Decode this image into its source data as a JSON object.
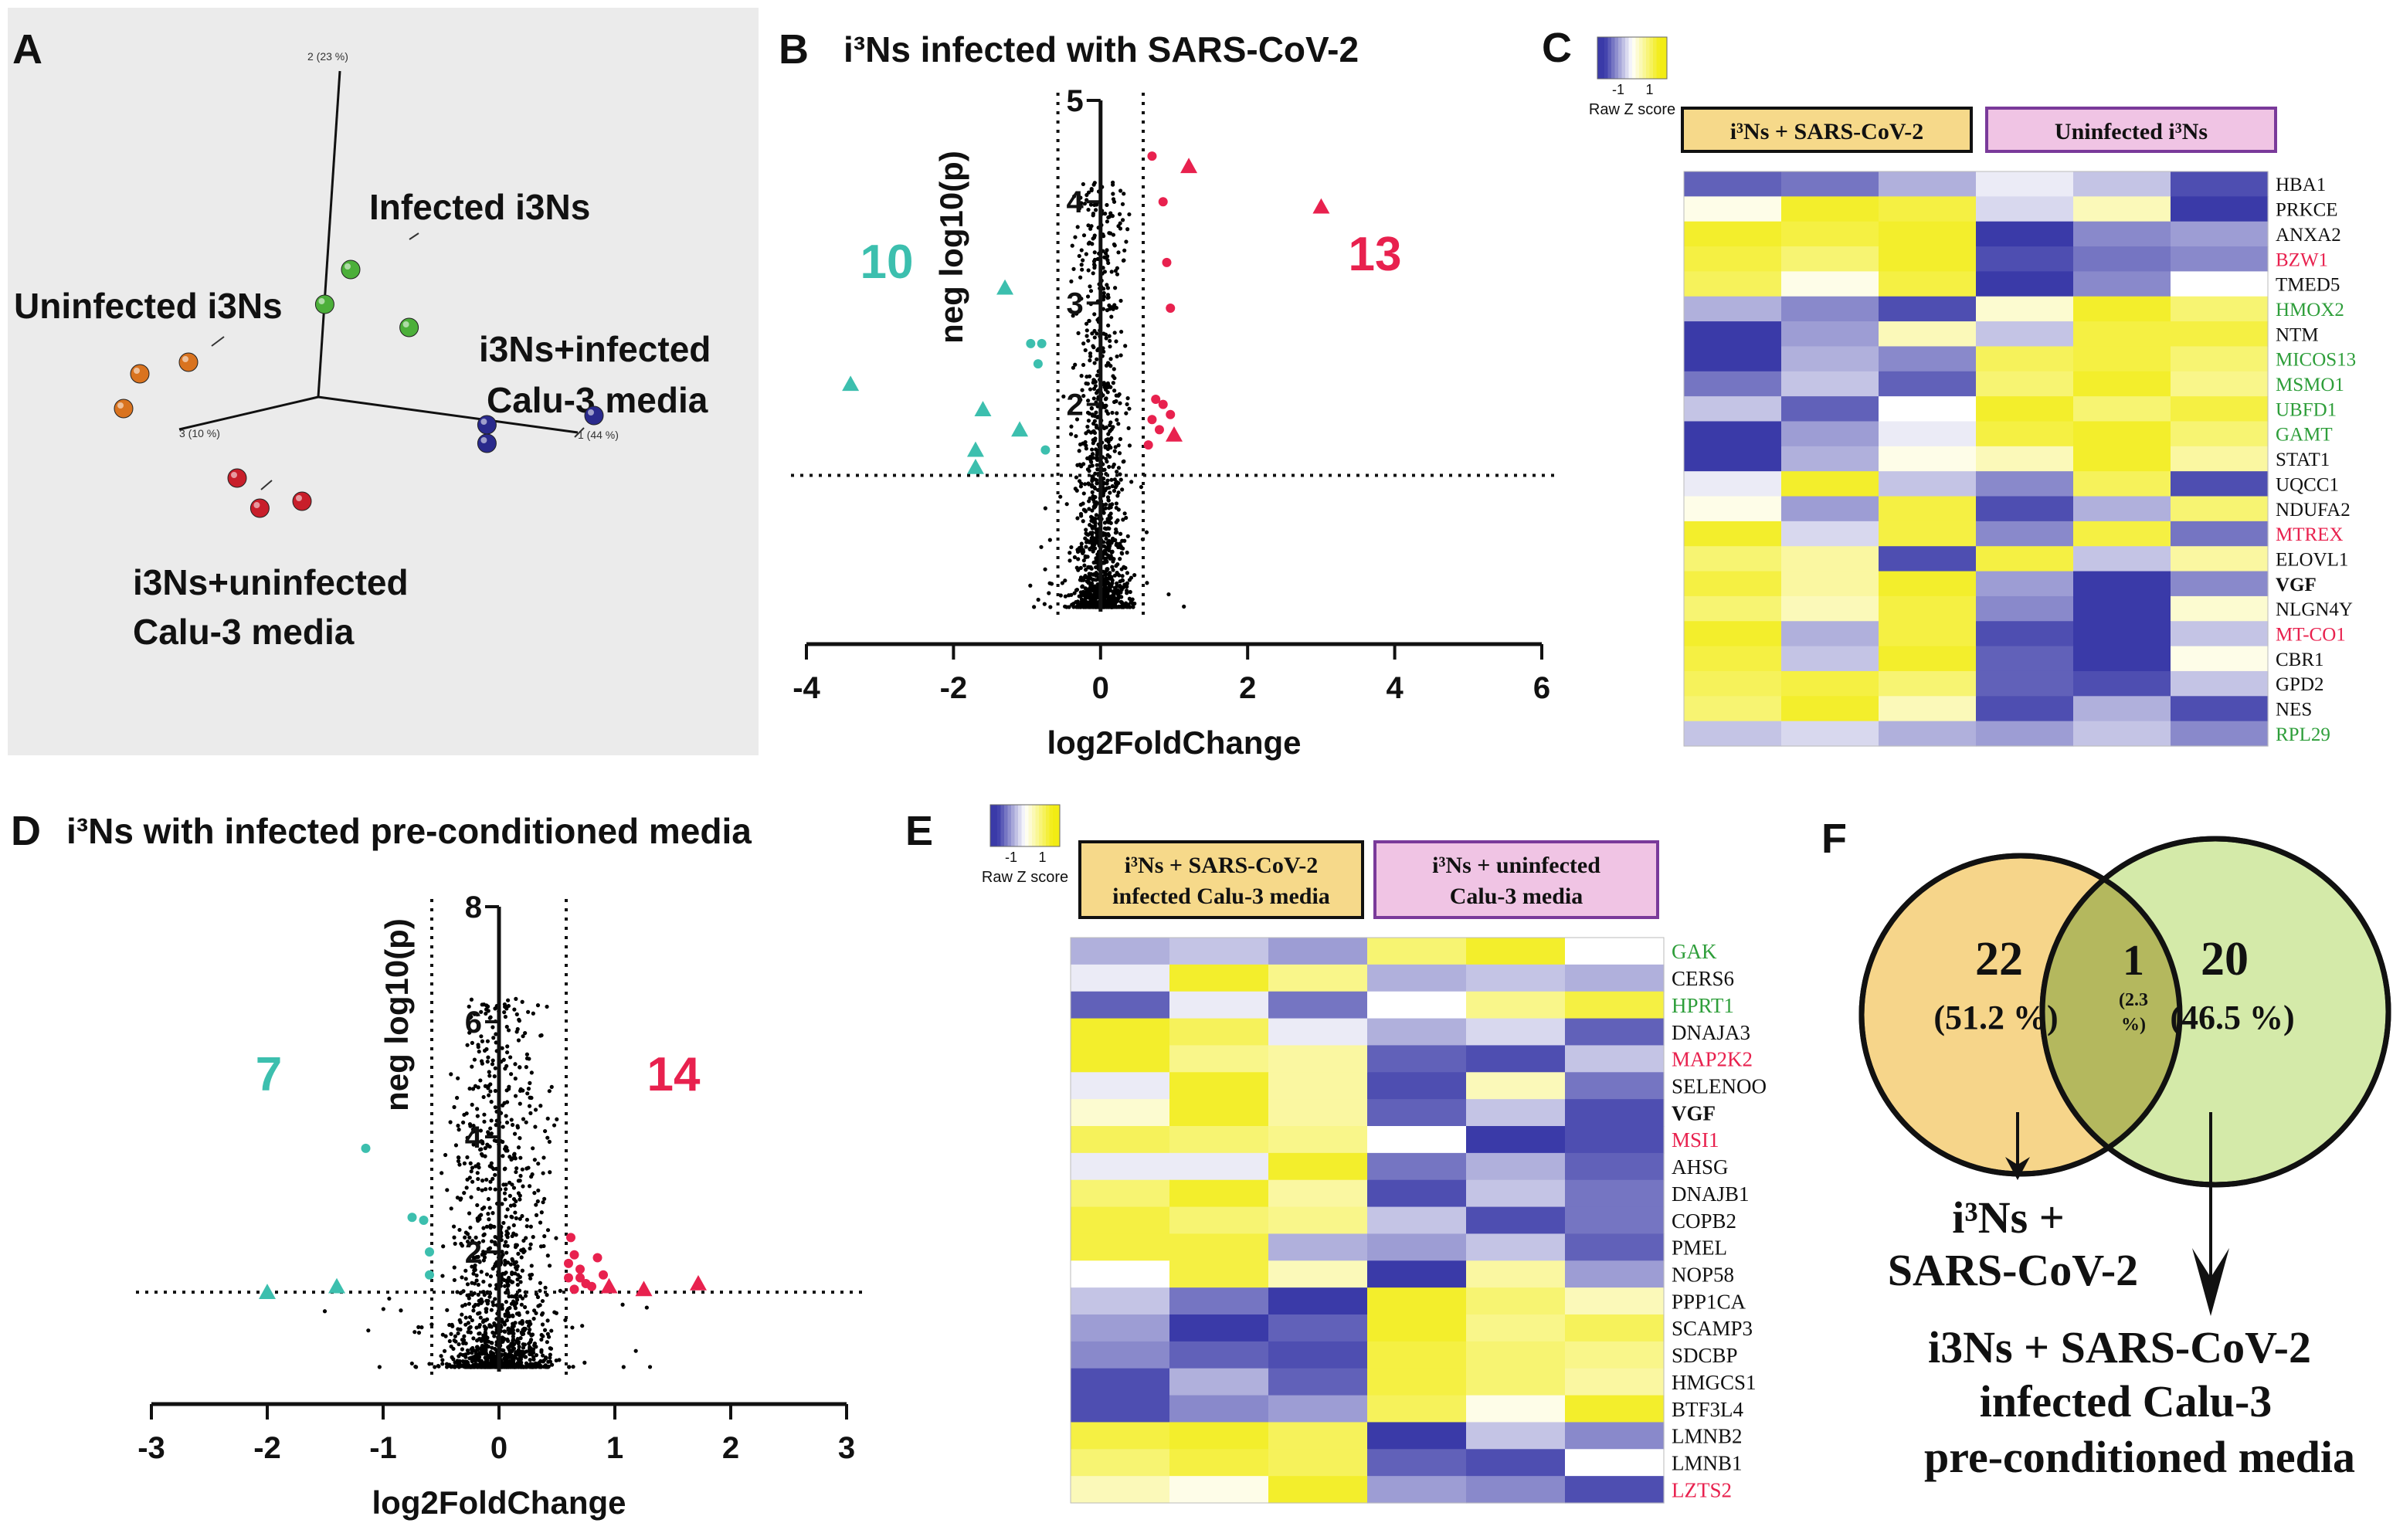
{
  "panels": {
    "A": "A",
    "B": "B",
    "C": "C",
    "D": "D",
    "E": "E",
    "F": "F"
  },
  "colors": {
    "teal": "#3cbfae",
    "red": "#e8214e",
    "green_gene": "#2e9e3a",
    "red_gene": "#e8214e",
    "black_gene": "#111111",
    "grey_bg": "#ebebeb",
    "heat_low": "#3a3aa8",
    "heat_mid": "#ffffff",
    "heat_high": "#f2ec14",
    "venn_left": "#f6d58a",
    "venn_right": "#d4eaa9",
    "venn_overlap": "#b4b85e",
    "header_yellow": "#f6d98a",
    "header_pink": "#f0c4e4",
    "header_purple": "#7a3a9a"
  },
  "chart_data": [
    {
      "id": "pca",
      "type": "scatter",
      "title": "",
      "axis_labels": {
        "pc1": "1 (44 %)",
        "pc2": "2 (23 %)",
        "pc3": "3 (10 %)"
      },
      "groups": [
        {
          "name": "Infected i3Ns",
          "color": "#4caf3a",
          "points": [
            [
              0.1,
              0.55
            ],
            [
              0.02,
              0.4
            ],
            [
              0.28,
              0.3
            ]
          ]
        },
        {
          "name": "Uninfected i3Ns",
          "color": "#d9731f",
          "points": [
            [
              -0.55,
              0.1
            ],
            [
              -0.4,
              0.15
            ],
            [
              -0.6,
              -0.05
            ]
          ]
        },
        {
          "name": "i3Ns+infected Calu-3 media",
          "color": "#2a2a8c",
          "points": [
            [
              0.52,
              -0.12
            ],
            [
              0.52,
              -0.2
            ],
            [
              0.85,
              -0.08
            ]
          ]
        },
        {
          "name": "i3Ns+uninfected Calu-3 media",
          "color": "#c81e2a",
          "points": [
            [
              -0.25,
              -0.35
            ],
            [
              -0.18,
              -0.48
            ],
            [
              -0.05,
              -0.45
            ]
          ]
        }
      ]
    },
    {
      "id": "volcano_B",
      "type": "scatter",
      "title": "i³Ns infected with SARS-CoV-2",
      "xlabel": "log2FoldChange",
      "ylabel": "neg log10(p)",
      "xlim": [
        -4,
        6
      ],
      "ylim": [
        0,
        5
      ],
      "xticks": [
        -4,
        -2,
        0,
        2,
        4,
        6
      ],
      "yticks": [
        2,
        3,
        4,
        5
      ],
      "thresholds": {
        "x": [
          -0.58,
          0.58
        ],
        "y": 1.3
      },
      "counts": {
        "down": "10",
        "up": "13"
      },
      "down_points": [
        {
          "x": -3.4,
          "y": 2.2,
          "shape": "triangle"
        },
        {
          "x": -1.3,
          "y": 3.15,
          "shape": "triangle"
        },
        {
          "x": -1.6,
          "y": 1.95,
          "shape": "triangle"
        },
        {
          "x": -1.1,
          "y": 1.75,
          "shape": "triangle"
        },
        {
          "x": -1.7,
          "y": 1.55,
          "shape": "triangle"
        },
        {
          "x": -1.7,
          "y": 1.38,
          "shape": "triangle"
        },
        {
          "x": -0.95,
          "y": 2.6,
          "shape": "circle"
        },
        {
          "x": -0.8,
          "y": 2.6,
          "shape": "circle"
        },
        {
          "x": -0.85,
          "y": 2.4,
          "shape": "circle"
        },
        {
          "x": -0.75,
          "y": 1.55,
          "shape": "circle"
        }
      ],
      "up_points": [
        {
          "x": 3.0,
          "y": 3.95,
          "shape": "triangle"
        },
        {
          "x": 1.2,
          "y": 4.35,
          "shape": "triangle"
        },
        {
          "x": 1.0,
          "y": 1.7,
          "shape": "triangle"
        },
        {
          "x": 0.7,
          "y": 4.45,
          "shape": "circle"
        },
        {
          "x": 0.85,
          "y": 4.0,
          "shape": "circle"
        },
        {
          "x": 0.9,
          "y": 3.4,
          "shape": "circle"
        },
        {
          "x": 0.95,
          "y": 2.95,
          "shape": "circle"
        },
        {
          "x": 0.75,
          "y": 2.05,
          "shape": "circle"
        },
        {
          "x": 0.85,
          "y": 2.0,
          "shape": "circle"
        },
        {
          "x": 0.95,
          "y": 1.9,
          "shape": "circle"
        },
        {
          "x": 0.7,
          "y": 1.85,
          "shape": "circle"
        },
        {
          "x": 0.8,
          "y": 1.75,
          "shape": "circle"
        },
        {
          "x": 0.65,
          "y": 1.6,
          "shape": "circle"
        }
      ]
    },
    {
      "id": "heatmap_C",
      "type": "heatmap",
      "legend_label": "Raw Z score",
      "legend_ticks": [
        "-1",
        "1"
      ],
      "groups": [
        "i³Ns + SARS-CoV-2",
        "Uninfected i³Ns"
      ],
      "rows": [
        {
          "gene": "HBA1",
          "color": "black",
          "values": [
            -0.8,
            -0.7,
            -0.4,
            -0.1,
            -0.3,
            -0.9
          ]
        },
        {
          "gene": "PRKCE",
          "color": "black",
          "values": [
            0.1,
            0.9,
            0.8,
            -0.2,
            0.3,
            -1.0
          ]
        },
        {
          "gene": "ANXA2",
          "color": "black",
          "values": [
            0.9,
            0.8,
            0.9,
            -1.0,
            -0.6,
            -0.5
          ]
        },
        {
          "gene": "BZW1",
          "color": "red",
          "values": [
            0.8,
            0.6,
            0.9,
            -0.9,
            -0.7,
            -0.6
          ]
        },
        {
          "gene": "TMED5",
          "color": "black",
          "values": [
            0.7,
            0.1,
            0.8,
            -1.0,
            -0.6,
            0.0
          ]
        },
        {
          "gene": "HMOX2",
          "color": "green",
          "values": [
            -0.4,
            -0.6,
            -0.9,
            0.2,
            0.9,
            0.6
          ]
        },
        {
          "gene": "NTM",
          "color": "black",
          "values": [
            -1.0,
            -0.5,
            0.3,
            -0.3,
            0.8,
            0.8
          ]
        },
        {
          "gene": "MICOS13",
          "color": "green",
          "values": [
            -1.1,
            -0.4,
            -0.6,
            0.7,
            0.8,
            0.6
          ]
        },
        {
          "gene": "MSMO1",
          "color": "green",
          "values": [
            -0.7,
            -0.3,
            -0.8,
            0.6,
            0.9,
            0.5
          ]
        },
        {
          "gene": "UBFD1",
          "color": "green",
          "values": [
            -0.3,
            -0.8,
            0.0,
            0.9,
            0.6,
            0.8
          ]
        },
        {
          "gene": "GAMT",
          "color": "green",
          "values": [
            -1.2,
            -0.5,
            -0.1,
            0.8,
            0.9,
            0.6
          ]
        },
        {
          "gene": "STAT1",
          "color": "black",
          "values": [
            -1.0,
            -0.4,
            0.1,
            0.3,
            0.9,
            0.4
          ]
        },
        {
          "gene": "UQCC1",
          "color": "black",
          "values": [
            -0.1,
            0.9,
            -0.3,
            -0.6,
            0.7,
            -0.9
          ]
        },
        {
          "gene": "NDUFA2",
          "color": "black",
          "values": [
            0.1,
            -0.5,
            0.8,
            -0.9,
            -0.4,
            0.6
          ]
        },
        {
          "gene": "MTREX",
          "color": "red",
          "values": [
            0.9,
            -0.2,
            0.8,
            -0.6,
            0.8,
            -0.7
          ]
        },
        {
          "gene": "ELOVL1",
          "color": "black",
          "values": [
            0.6,
            0.4,
            -0.9,
            0.8,
            -0.3,
            0.4
          ]
        },
        {
          "gene": "VGF",
          "color": "bold",
          "values": [
            0.8,
            0.4,
            0.9,
            -0.5,
            -1.0,
            -0.6
          ]
        },
        {
          "gene": "NLGN4Y",
          "color": "black",
          "values": [
            0.6,
            0.3,
            0.8,
            -0.6,
            -1.0,
            0.2
          ]
        },
        {
          "gene": "MT-CO1",
          "color": "red",
          "values": [
            0.9,
            -0.4,
            0.8,
            -0.9,
            -1.2,
            -0.3
          ]
        },
        {
          "gene": "CBR1",
          "color": "black",
          "values": [
            0.8,
            -0.3,
            0.9,
            -0.8,
            -1.1,
            0.1
          ]
        },
        {
          "gene": "GPD2",
          "color": "black",
          "values": [
            0.7,
            0.8,
            0.6,
            -0.8,
            -0.9,
            -0.3
          ]
        },
        {
          "gene": "NES",
          "color": "black",
          "values": [
            0.6,
            0.9,
            0.3,
            -0.9,
            -0.4,
            -0.9
          ]
        },
        {
          "gene": "RPL29",
          "color": "green",
          "values": [
            -0.3,
            -0.2,
            -0.4,
            -0.5,
            -0.3,
            -0.6
          ]
        }
      ]
    },
    {
      "id": "volcano_D",
      "type": "scatter",
      "title": "i³Ns with infected pre-conditioned media",
      "xlabel": "log2FoldChange",
      "ylabel": "neg log10(p)",
      "xlim": [
        -3,
        3
      ],
      "ylim": [
        0,
        8
      ],
      "xticks": [
        -3,
        -2,
        -1,
        0,
        1,
        2,
        3
      ],
      "yticks": [
        2,
        4,
        6,
        8
      ],
      "thresholds": {
        "x": [
          -0.58,
          0.58
        ],
        "y": 1.3
      },
      "counts": {
        "down": "7",
        "up": "14"
      },
      "down_points": [
        {
          "x": -2.0,
          "y": 1.3,
          "shape": "triangle"
        },
        {
          "x": -1.4,
          "y": 1.4,
          "shape": "triangle"
        },
        {
          "x": -1.15,
          "y": 3.8,
          "shape": "circle"
        },
        {
          "x": -0.75,
          "y": 2.6,
          "shape": "circle"
        },
        {
          "x": -0.65,
          "y": 2.55,
          "shape": "circle"
        },
        {
          "x": -0.6,
          "y": 1.6,
          "shape": "circle"
        },
        {
          "x": -0.6,
          "y": 2.0,
          "shape": "circle"
        }
      ],
      "up_points": [
        {
          "x": 0.95,
          "y": 1.4,
          "shape": "triangle"
        },
        {
          "x": 1.25,
          "y": 1.35,
          "shape": "triangle"
        },
        {
          "x": 1.72,
          "y": 1.45,
          "shape": "triangle"
        },
        {
          "x": 0.62,
          "y": 2.25,
          "shape": "circle"
        },
        {
          "x": 0.65,
          "y": 1.95,
          "shape": "circle"
        },
        {
          "x": 0.85,
          "y": 1.9,
          "shape": "circle"
        },
        {
          "x": 0.7,
          "y": 1.7,
          "shape": "circle"
        },
        {
          "x": 0.6,
          "y": 1.55,
          "shape": "circle"
        },
        {
          "x": 0.75,
          "y": 1.45,
          "shape": "circle"
        },
        {
          "x": 0.65,
          "y": 1.35,
          "shape": "circle"
        },
        {
          "x": 0.8,
          "y": 1.4,
          "shape": "circle"
        },
        {
          "x": 0.9,
          "y": 1.6,
          "shape": "circle"
        },
        {
          "x": 0.7,
          "y": 1.55,
          "shape": "circle"
        },
        {
          "x": 0.6,
          "y": 1.8,
          "shape": "circle"
        }
      ]
    },
    {
      "id": "heatmap_E",
      "type": "heatmap",
      "legend_label": "Raw Z score",
      "legend_ticks": [
        "-1",
        "1"
      ],
      "groups": [
        "i³Ns + SARS-CoV-2 infected Calu-3 media",
        "i³Ns + uninfected Calu-3 media"
      ],
      "rows": [
        {
          "gene": "GAK",
          "color": "green",
          "values": [
            -0.4,
            -0.3,
            -0.5,
            0.6,
            0.9,
            0.0
          ]
        },
        {
          "gene": "CERS6",
          "color": "black",
          "values": [
            -0.1,
            0.9,
            0.5,
            -0.4,
            -0.3,
            -0.4
          ]
        },
        {
          "gene": "HPRT1",
          "color": "green",
          "values": [
            -0.8,
            -0.1,
            -0.7,
            0.0,
            0.5,
            0.8
          ]
        },
        {
          "gene": "DNAJA3",
          "color": "black",
          "values": [
            0.9,
            0.7,
            -0.1,
            -0.4,
            -0.2,
            -0.8
          ]
        },
        {
          "gene": "MAP2K2",
          "color": "red",
          "values": [
            0.9,
            0.5,
            0.4,
            -0.8,
            -0.9,
            -0.3
          ]
        },
        {
          "gene": "SELENOO",
          "color": "black",
          "values": [
            -0.1,
            0.9,
            0.4,
            -0.9,
            0.3,
            -0.7
          ]
        },
        {
          "gene": "VGF",
          "color": "bold",
          "values": [
            0.2,
            0.9,
            0.4,
            -0.8,
            -0.3,
            -0.9
          ]
        },
        {
          "gene": "MSI1",
          "color": "red",
          "values": [
            0.7,
            0.6,
            0.5,
            0.0,
            -1.0,
            -0.9
          ]
        },
        {
          "gene": "AHSG",
          "color": "black",
          "values": [
            -0.1,
            -0.1,
            0.9,
            -0.7,
            -0.4,
            -0.8
          ]
        },
        {
          "gene": "DNAJB1",
          "color": "black",
          "values": [
            0.6,
            0.9,
            0.4,
            -0.9,
            -0.3,
            -0.7
          ]
        },
        {
          "gene": "COPB2",
          "color": "black",
          "values": [
            0.8,
            0.6,
            0.5,
            -0.3,
            -0.9,
            -0.7
          ]
        },
        {
          "gene": "PMEL",
          "color": "black",
          "values": [
            0.8,
            0.8,
            -0.4,
            -0.5,
            -0.3,
            -0.8
          ]
        },
        {
          "gene": "NOP58",
          "color": "black",
          "values": [
            0.0,
            0.8,
            0.3,
            -1.0,
            0.4,
            -0.5
          ]
        },
        {
          "gene": "PPP1CA",
          "color": "black",
          "values": [
            -0.3,
            -0.7,
            -1.0,
            0.9,
            0.6,
            0.3
          ]
        },
        {
          "gene": "SCAMP3",
          "color": "black",
          "values": [
            -0.5,
            -1.0,
            -0.8,
            0.9,
            0.5,
            0.7
          ]
        },
        {
          "gene": "SDCBP",
          "color": "black",
          "values": [
            -0.6,
            -0.8,
            -0.9,
            0.8,
            0.6,
            0.5
          ]
        },
        {
          "gene": "HMGCS1",
          "color": "black",
          "values": [
            -0.9,
            -0.4,
            -0.8,
            0.8,
            0.6,
            0.4
          ]
        },
        {
          "gene": "BTF3L4",
          "color": "black",
          "values": [
            -0.9,
            -0.6,
            -0.5,
            0.7,
            0.1,
            0.9
          ]
        },
        {
          "gene": "LMNB2",
          "color": "black",
          "values": [
            0.8,
            0.9,
            0.7,
            -1.0,
            -0.3,
            -0.6
          ]
        },
        {
          "gene": "LMNB1",
          "color": "black",
          "values": [
            0.6,
            0.8,
            0.7,
            -0.8,
            -0.9,
            0.0
          ]
        },
        {
          "gene": "LZTS2",
          "color": "red",
          "values": [
            0.3,
            0.1,
            0.9,
            -0.5,
            -0.6,
            -0.9
          ]
        }
      ]
    },
    {
      "id": "venn_F",
      "type": "venn",
      "sets": [
        {
          "name": "i³Ns + SARS-CoV-2",
          "only": "22",
          "pct": "(51.2 %)"
        },
        {
          "name": "i3Ns + SARS-CoV-2 infected Calu-3 pre-conditioned media",
          "only": "20",
          "pct": "(46.5 %)"
        }
      ],
      "overlap": {
        "count": "1",
        "pct_line1": "(2.3",
        "pct_line2": "%)"
      },
      "labels": {
        "left_line1": "i³Ns +",
        "left_line2": "SARS-CoV-2",
        "right_line1": "i3Ns + SARS-CoV-2",
        "right_line2": "infected Calu-3",
        "right_line3": "pre-conditioned media"
      }
    }
  ]
}
